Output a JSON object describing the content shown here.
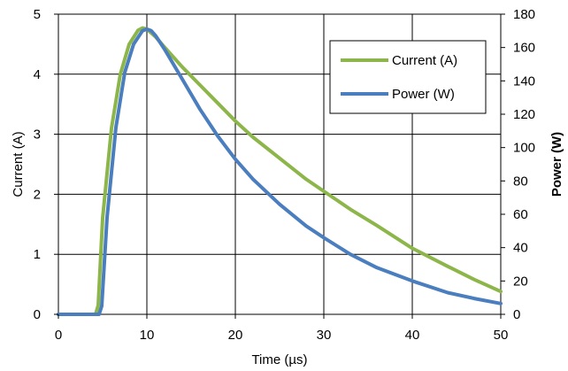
{
  "chart_data": {
    "type": "line",
    "title": "",
    "xlabel": "Time (µs)",
    "ylabel": "Current (A)",
    "y2label": "Power (W)",
    "xlim": [
      0,
      50
    ],
    "ylim": [
      0,
      5
    ],
    "y2lim": [
      0,
      180
    ],
    "xticks": [
      "0",
      "10",
      "20",
      "30",
      "40",
      "50"
    ],
    "yticks": [
      "0",
      "1",
      "2",
      "3",
      "4",
      "5"
    ],
    "y2ticks": [
      "0",
      "20",
      "40",
      "60",
      "80",
      "100",
      "120",
      "140",
      "160",
      "180"
    ],
    "grid": true,
    "legend_position": "top-right",
    "series": [
      {
        "name": "Current (A)",
        "axis": "left",
        "color": "#8DB64A",
        "x": [
          0,
          4.2,
          4.5,
          5,
          6,
          7,
          8,
          9,
          9.5,
          10,
          11,
          12,
          14,
          16,
          18,
          20,
          22,
          25,
          28,
          30,
          33,
          36,
          40,
          44,
          47,
          50
        ],
        "y": [
          0,
          0,
          0.15,
          1.6,
          3.1,
          4.0,
          4.5,
          4.73,
          4.77,
          4.75,
          4.62,
          4.45,
          4.12,
          3.82,
          3.52,
          3.22,
          2.95,
          2.6,
          2.25,
          2.05,
          1.75,
          1.48,
          1.1,
          0.8,
          0.58,
          0.38
        ]
      },
      {
        "name": "Power (W)",
        "axis": "right",
        "color": "#4A7EBF",
        "x": [
          0,
          4.6,
          4.9,
          5.5,
          6.5,
          7.5,
          8.5,
          9.5,
          10,
          10.5,
          11,
          12,
          14,
          16,
          18,
          20,
          22,
          25,
          28,
          30,
          33,
          36,
          40,
          44,
          47,
          50
        ],
        "y": [
          0,
          0,
          5,
          58,
          112,
          145,
          162,
          170,
          171,
          170,
          167,
          159,
          141,
          123,
          107,
          93,
          81,
          66,
          53,
          46,
          36,
          28,
          20,
          13,
          9.5,
          6.5
        ]
      }
    ]
  }
}
